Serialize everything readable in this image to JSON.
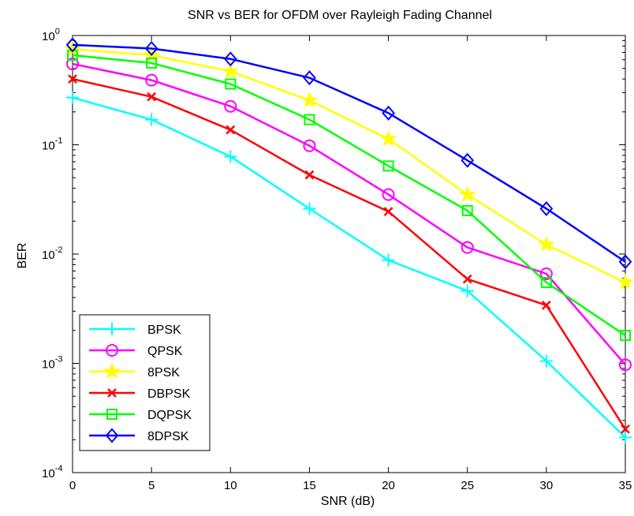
{
  "chart_data": {
    "type": "line",
    "title": "SNR vs BER for OFDM over Rayleigh Fading Channel",
    "xlabel": "SNR (dB)",
    "ylabel": "BER",
    "xlim": [
      0,
      35
    ],
    "ylim": [
      0.0001,
      1
    ],
    "yscale": "log",
    "x_ticks": [
      "0",
      "5",
      "10",
      "15",
      "20",
      "25",
      "30",
      "35"
    ],
    "y_ticks": [
      {
        "base": "10",
        "exp": "0"
      },
      {
        "base": "10",
        "exp": "-1"
      },
      {
        "base": "10",
        "exp": "-2"
      },
      {
        "base": "10",
        "exp": "-3"
      },
      {
        "base": "10",
        "exp": "-4"
      }
    ],
    "grid": false,
    "legend_position": "bottom-left",
    "x": [
      0,
      5,
      10,
      15,
      20,
      25,
      30,
      35
    ],
    "series": [
      {
        "name": "BPSK",
        "color": "#00ffff",
        "marker": "plus",
        "values": [
          0.27,
          0.17,
          0.078,
          0.026,
          0.0088,
          0.0046,
          0.00105,
          0.00021
        ]
      },
      {
        "name": "QPSK",
        "color": "#ff00ff",
        "marker": "circle",
        "values": [
          0.55,
          0.39,
          0.225,
          0.098,
          0.035,
          0.0115,
          0.0066,
          0.00097
        ]
      },
      {
        "name": "8PSK",
        "color": "#ffff00",
        "marker": "star",
        "values": [
          0.75,
          0.66,
          0.47,
          0.255,
          0.113,
          0.035,
          0.0122,
          0.0055
        ]
      },
      {
        "name": "DBPSK",
        "color": "#ff0000",
        "marker": "x",
        "values": [
          0.4,
          0.275,
          0.137,
          0.053,
          0.0245,
          0.0059,
          0.0034,
          0.00025
        ]
      },
      {
        "name": "DQPSK",
        "color": "#00ff00",
        "marker": "square",
        "values": [
          0.66,
          0.56,
          0.36,
          0.17,
          0.064,
          0.025,
          0.0055,
          0.0018
        ]
      },
      {
        "name": "8DPSK",
        "color": "#0000ff",
        "marker": "diamond",
        "values": [
          0.82,
          0.76,
          0.61,
          0.41,
          0.195,
          0.072,
          0.026,
          0.0085
        ]
      }
    ]
  }
}
